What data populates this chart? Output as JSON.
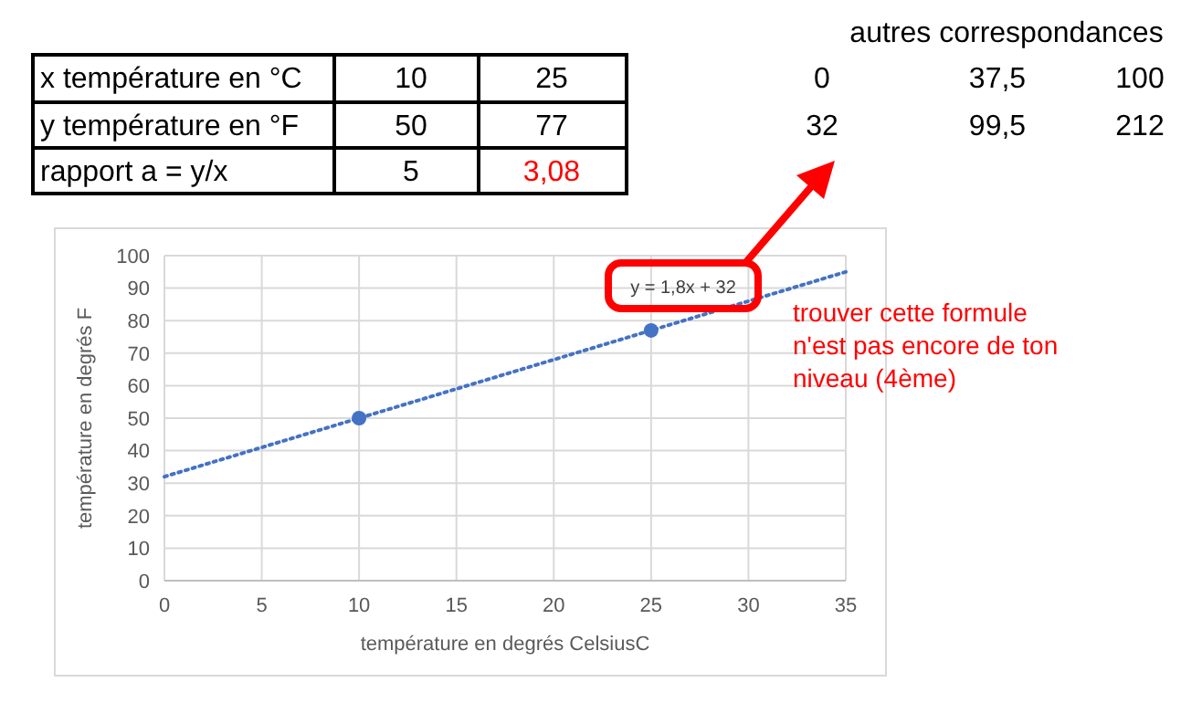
{
  "chart_data": {
    "type": "scatter",
    "xlabel": "température en degrés CelsiusC",
    "ylabel": "température en degrés F",
    "xlim": [
      0,
      35
    ],
    "xticks": [
      0,
      5,
      10,
      15,
      20,
      25,
      30,
      35
    ],
    "ylim": [
      0,
      100
    ],
    "yticks": [
      0,
      10,
      20,
      30,
      40,
      50,
      60,
      70,
      80,
      90,
      100
    ],
    "grid": true,
    "series": [
      {
        "x": [
          10,
          25
        ],
        "values": [
          50,
          77
        ],
        "color": "#4472c4",
        "marker": "circle"
      },
      {
        "type": "line",
        "x": [
          0,
          35
        ],
        "values": [
          32,
          95
        ],
        "color": "#4472c4",
        "marker": "none",
        "line_style": "dotted"
      }
    ],
    "annotations": [
      "y = 1,8x + 32",
      "trouver cette formule\nn'est pas encore de ton\nniveau (4ème)",
      "x température en °C",
      "10",
      "25",
      "y température en °F",
      "50",
      "77",
      "rapport a = y/x",
      "5",
      "3,08",
      "autres correspondances",
      "0",
      "37,5",
      "100",
      "32",
      "99,5",
      "212"
    ]
  }
}
